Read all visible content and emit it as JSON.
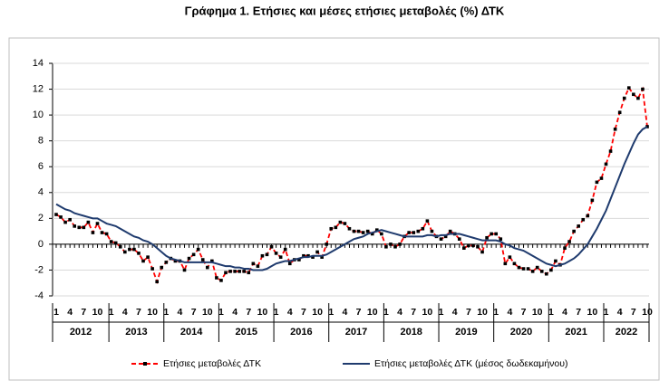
{
  "chart_data": {
    "type": "line",
    "title": "Γράφημα 1. Ετήσιες και μέσες ετήσιες μεταβολές (%) ΔΤΚ",
    "categories": [
      "1",
      null,
      null,
      "4",
      null,
      null,
      "7",
      null,
      null,
      "10",
      null,
      null,
      "1",
      null,
      null,
      "4",
      null,
      null,
      "7",
      null,
      null,
      "10",
      null,
      null,
      "1",
      null,
      null,
      "4",
      null,
      null,
      "7",
      null,
      null,
      "10",
      null,
      null,
      "1",
      null,
      null,
      "4",
      null,
      null,
      "7",
      null,
      null,
      "10",
      null,
      null,
      "1",
      null,
      null,
      "4",
      null,
      null,
      "7",
      null,
      null,
      "10",
      null,
      null,
      "1",
      null,
      null,
      "4",
      null,
      null,
      "7",
      null,
      null,
      "10",
      null,
      null,
      "1",
      null,
      null,
      "4",
      null,
      null,
      "7",
      null,
      null,
      "10",
      null,
      null,
      "1",
      null,
      null,
      "4",
      null,
      null,
      "7",
      null,
      null,
      "10",
      null,
      null,
      "1",
      null,
      null,
      "4",
      null,
      null,
      "7",
      null,
      null,
      "10",
      null,
      null,
      "1",
      null,
      null,
      "4",
      null,
      null,
      "7",
      null,
      null,
      "10",
      null,
      null,
      "1",
      null,
      null,
      "4",
      null,
      null,
      "7",
      null,
      null,
      "10"
    ],
    "years": [
      "2012",
      "2013",
      "2014",
      "2015",
      "2016",
      "2017",
      "2018",
      "2019",
      "2020",
      "2021",
      "2022"
    ],
    "ylim": [
      -4,
      14
    ],
    "yticks": [
      -4,
      -2,
      0,
      2,
      4,
      6,
      8,
      10,
      12,
      14
    ],
    "grid": true,
    "series": [
      {
        "name": "Ετήσιες μεταβολές ΔΤΚ",
        "color": "#ff0000",
        "dashed": true,
        "markers": true,
        "values": [
          2.3,
          2.1,
          1.7,
          1.9,
          1.4,
          1.3,
          1.3,
          1.7,
          0.9,
          1.6,
          0.9,
          0.8,
          0.2,
          0.1,
          -0.2,
          -0.6,
          -0.4,
          -0.4,
          -0.7,
          -1.3,
          -1.0,
          -1.9,
          -2.9,
          -1.8,
          -1.4,
          -1.1,
          -1.3,
          -1.3,
          -2.0,
          -1.1,
          -0.8,
          -0.4,
          -1.2,
          -1.8,
          -1.3,
          -2.6,
          -2.8,
          -2.2,
          -2.1,
          -2.1,
          -2.1,
          -2.1,
          -2.2,
          -1.5,
          -1.7,
          -0.9,
          -0.8,
          -0.2,
          -0.7,
          -1.0,
          -0.4,
          -1.5,
          -1.2,
          -1.2,
          -0.9,
          -0.9,
          -1.0,
          -0.6,
          -1.0,
          0.0,
          1.2,
          1.3,
          1.7,
          1.6,
          1.2,
          1.0,
          1.0,
          0.9,
          1.0,
          0.8,
          1.1,
          0.8,
          -0.2,
          0.0,
          -0.2,
          0.0,
          0.6,
          0.9,
          0.9,
          1.0,
          1.2,
          1.8,
          1.0,
          0.6,
          0.4,
          0.6,
          1.0,
          0.8,
          0.4,
          -0.3,
          -0.1,
          -0.1,
          -0.2,
          -0.6,
          0.5,
          0.8,
          0.8,
          0.4,
          -1.5,
          -1.0,
          -1.5,
          -1.8,
          -1.9,
          -1.9,
          -2.1,
          -1.8,
          -2.1,
          -2.3,
          -2.0,
          -1.3,
          -1.6,
          -0.3,
          0.2,
          1.0,
          1.4,
          1.9,
          2.2,
          3.4,
          4.8,
          5.1,
          6.2,
          7.2,
          8.9,
          10.2,
          11.3,
          12.1,
          11.6,
          11.3,
          12.0,
          9.1
        ]
      },
      {
        "name": "Ετήσιες μεταβολές ΔΤΚ (μέσος δωδεκαμήνου)",
        "color": "#1f3b6e",
        "dashed": false,
        "markers": false,
        "values": [
          3.1,
          2.9,
          2.7,
          2.6,
          2.4,
          2.3,
          2.2,
          2.1,
          2.0,
          2.0,
          1.8,
          1.6,
          1.5,
          1.4,
          1.2,
          1.0,
          0.8,
          0.6,
          0.5,
          0.3,
          0.2,
          0.0,
          -0.3,
          -0.6,
          -0.9,
          -1.1,
          -1.2,
          -1.3,
          -1.4,
          -1.4,
          -1.4,
          -1.4,
          -1.4,
          -1.4,
          -1.4,
          -1.5,
          -1.6,
          -1.7,
          -1.7,
          -1.8,
          -1.8,
          -1.9,
          -1.9,
          -2.0,
          -2.0,
          -2.0,
          -1.9,
          -1.7,
          -1.5,
          -1.4,
          -1.3,
          -1.3,
          -1.2,
          -1.1,
          -1.0,
          -1.0,
          -0.9,
          -0.9,
          -0.9,
          -0.8,
          -0.6,
          -0.4,
          -0.2,
          0.0,
          0.2,
          0.4,
          0.5,
          0.6,
          0.8,
          0.9,
          1.0,
          1.1,
          1.0,
          0.9,
          0.8,
          0.7,
          0.6,
          0.6,
          0.6,
          0.6,
          0.6,
          0.7,
          0.7,
          0.6,
          0.7,
          0.7,
          0.8,
          0.8,
          0.8,
          0.7,
          0.6,
          0.5,
          0.4,
          0.3,
          0.3,
          0.3,
          0.3,
          0.2,
          0.0,
          -0.1,
          -0.3,
          -0.4,
          -0.5,
          -0.7,
          -0.9,
          -1.1,
          -1.3,
          -1.5,
          -1.6,
          -1.7,
          -1.6,
          -1.5,
          -1.3,
          -1.1,
          -0.8,
          -0.4,
          0.0,
          0.6,
          1.2,
          1.9,
          2.6,
          3.5,
          4.4,
          5.3,
          6.2,
          7.0,
          7.8,
          8.5,
          8.9,
          9.1
        ]
      }
    ]
  }
}
